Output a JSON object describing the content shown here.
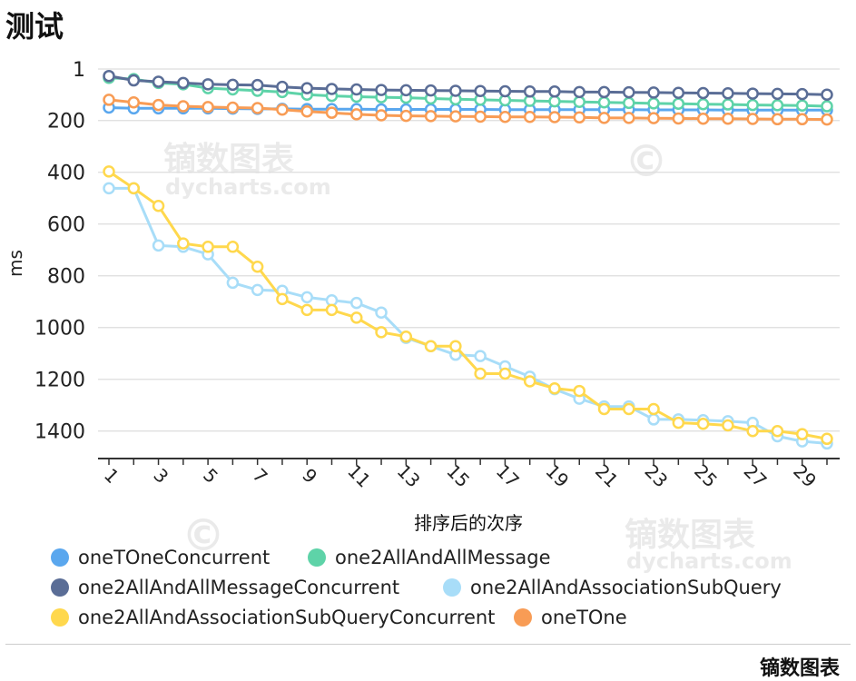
{
  "watermark": {
    "cn": "镝数图表",
    "en": "dycharts.com",
    "copyright": "©"
  },
  "footer": {
    "brand": "镝数图表"
  },
  "chart_data": {
    "type": "line",
    "title": "测试",
    "xlabel": "排序后的次序",
    "ylabel": "ms",
    "y_inverted": true,
    "ylim": [
      1,
      1450
    ],
    "y_ticks": [
      1,
      200,
      400,
      600,
      800,
      1000,
      1200,
      1400
    ],
    "x": [
      1,
      2,
      3,
      4,
      5,
      6,
      7,
      8,
      9,
      10,
      11,
      12,
      13,
      14,
      15,
      16,
      17,
      18,
      19,
      20,
      21,
      22,
      23,
      24,
      25,
      26,
      27,
      28,
      29,
      30
    ],
    "x_tick_labels": [
      "1",
      "3",
      "5",
      "7",
      "9",
      "11",
      "13",
      "15",
      "17",
      "19",
      "21",
      "23",
      "25",
      "27",
      "29"
    ],
    "grid": true,
    "legend_position": "bottom",
    "series": [
      {
        "name": "oneTOneConcurrent",
        "color": "#5aa7ee",
        "values": [
          150,
          153,
          153,
          153,
          153,
          154,
          155,
          155,
          156,
          156,
          156,
          157,
          157,
          157,
          157,
          157,
          158,
          158,
          158,
          158,
          158,
          158,
          159,
          159,
          159,
          160,
          160,
          160,
          160,
          160
        ]
      },
      {
        "name": "one2AllAndAllMessage",
        "color": "#5ed3a8",
        "values": [
          35,
          40,
          55,
          60,
          75,
          80,
          85,
          90,
          100,
          105,
          108,
          110,
          112,
          115,
          118,
          120,
          122,
          124,
          126,
          128,
          130,
          132,
          134,
          135,
          137,
          138,
          140,
          141,
          142,
          145
        ]
      },
      {
        "name": "one2AllAndAllMessageConcurrent",
        "color": "#5a6d96",
        "values": [
          28,
          45,
          50,
          55,
          60,
          62,
          63,
          70,
          75,
          78,
          80,
          82,
          83,
          84,
          85,
          86,
          87,
          88,
          88,
          90,
          90,
          91,
          92,
          93,
          94,
          95,
          96,
          97,
          98,
          100
        ]
      },
      {
        "name": "one2AllAndAssociationSubQuery",
        "color": "#a8ddf8",
        "values": [
          462,
          462,
          683,
          688,
          717,
          827,
          855,
          858,
          883,
          895,
          905,
          942,
          1040,
          1072,
          1105,
          1110,
          1150,
          1190,
          1238,
          1275,
          1305,
          1305,
          1355,
          1355,
          1358,
          1362,
          1368,
          1420,
          1440,
          1448
        ]
      },
      {
        "name": "one2AllAndAssociationSubQueryConcurrent",
        "color": "#ffd84d",
        "values": [
          397,
          462,
          530,
          675,
          688,
          688,
          765,
          890,
          932,
          932,
          962,
          1018,
          1035,
          1072,
          1072,
          1178,
          1178,
          1208,
          1235,
          1245,
          1315,
          1315,
          1315,
          1368,
          1372,
          1378,
          1400,
          1400,
          1412,
          1430
        ]
      },
      {
        "name": "oneTOne",
        "color": "#f89c55",
        "values": [
          120,
          130,
          140,
          145,
          148,
          150,
          152,
          158,
          165,
          170,
          176,
          180,
          182,
          183,
          184,
          185,
          186,
          186,
          187,
          188,
          190,
          190,
          191,
          192,
          193,
          193,
          194,
          195,
          195,
          196
        ]
      }
    ]
  }
}
